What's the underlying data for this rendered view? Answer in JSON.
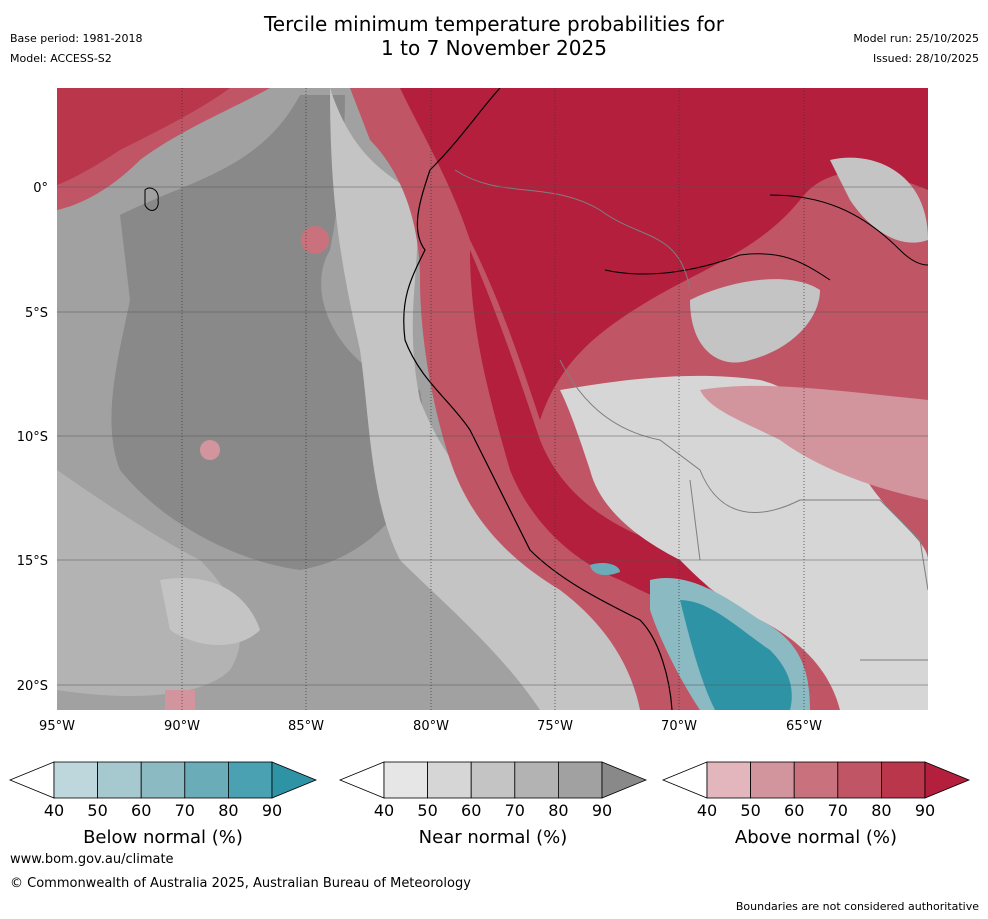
{
  "title_line1": "Tercile minimum temperature probabilities for",
  "title_line2": "1 to 7 November 2025",
  "base_period": "Base period: 1981-2018",
  "model": "Model: ACCESS-S2",
  "model_run": "Model run: 25/10/2025",
  "issued": "Issued: 28/10/2025",
  "lat_labels": [
    "0°",
    "5°S",
    "10°S",
    "15°S",
    "20°S"
  ],
  "lon_labels": [
    "95°W",
    "90°W",
    "85°W",
    "80°W",
    "75°W",
    "70°W",
    "65°W"
  ],
  "colorbars": [
    {
      "title": "Below normal (%)",
      "ticks": [
        "40",
        "50",
        "60",
        "70",
        "80",
        "90"
      ],
      "colors": [
        "#bdd7dc",
        "#a6c9cf",
        "#8bbac3",
        "#6aadb9",
        "#4aa1b1",
        "#2f93a6"
      ]
    },
    {
      "title": "Near normal (%)",
      "ticks": [
        "40",
        "50",
        "60",
        "70",
        "80",
        "90"
      ],
      "colors": [
        "#e6e6e6",
        "#d6d6d6",
        "#c4c4c4",
        "#b3b3b3",
        "#a1a1a1",
        "#898989"
      ]
    },
    {
      "title": "Above normal (%)",
      "ticks": [
        "40",
        "50",
        "60",
        "70",
        "80",
        "90"
      ],
      "colors": [
        "#e2b6bc",
        "#d3959d",
        "#c9727e",
        "#c05565",
        "#b9364b",
        "#b31f3d"
      ]
    }
  ],
  "footer_url": "www.bom.gov.au/climate",
  "footer_copyright": "© Commonwealth of Australia 2025, Australian Bureau of Meteorology",
  "footer_note": "Boundaries are not considered authoritative"
}
